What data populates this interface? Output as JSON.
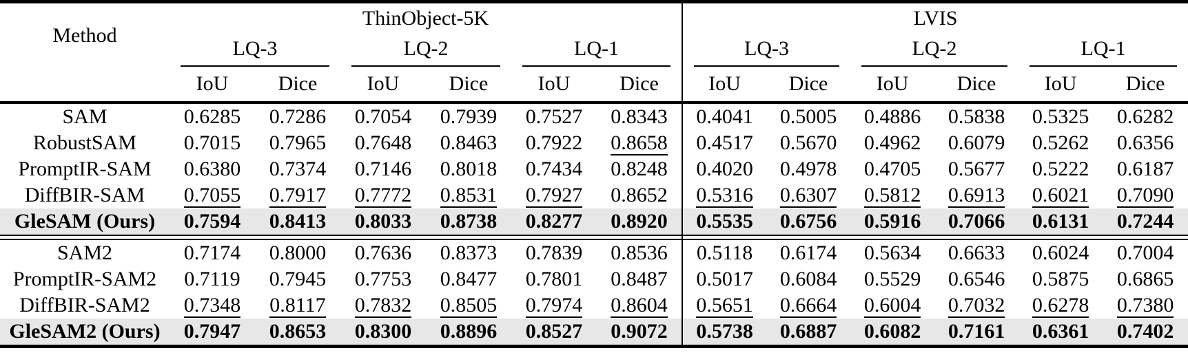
{
  "page": {
    "background_color": "#ffffff",
    "text_color": "#000000",
    "highlight_row_color": "#e7e7e7",
    "rule_color": "#000000"
  },
  "table": {
    "method_header": "Method",
    "groups": [
      {
        "label": "ThinObject-5K",
        "subgroups": [
          "LQ-3",
          "LQ-2",
          "LQ-1"
        ]
      },
      {
        "label": "LVIS",
        "subgroups": [
          "LQ-3",
          "LQ-2",
          "LQ-1"
        ]
      }
    ],
    "metric_headers": [
      "IoU",
      "Dice",
      "IoU",
      "Dice",
      "IoU",
      "Dice",
      "IoU",
      "Dice",
      "IoU",
      "Dice",
      "IoU",
      "Dice"
    ],
    "sections": [
      {
        "rows": [
          {
            "method": "SAM",
            "highlight": false,
            "underlined": [],
            "values": [
              "0.6285",
              "0.7286",
              "0.7054",
              "0.7939",
              "0.7527",
              "0.8343",
              "0.4041",
              "0.5005",
              "0.4886",
              "0.5838",
              "0.5325",
              "0.6282"
            ]
          },
          {
            "method": "RobustSAM",
            "highlight": false,
            "underlined": [
              5
            ],
            "values": [
              "0.7015",
              "0.7965",
              "0.7648",
              "0.8463",
              "0.7922",
              "0.8658",
              "0.4517",
              "0.5670",
              "0.4962",
              "0.6079",
              "0.5262",
              "0.6356"
            ]
          },
          {
            "method": "PromptIR-SAM",
            "highlight": false,
            "underlined": [],
            "values": [
              "0.6380",
              "0.7374",
              "0.7146",
              "0.8018",
              "0.7434",
              "0.8248",
              "0.4020",
              "0.4978",
              "0.4705",
              "0.5677",
              "0.5222",
              "0.6187"
            ]
          },
          {
            "method": "DiffBIR-SAM",
            "highlight": false,
            "underlined": [
              0,
              1,
              2,
              3,
              4,
              6,
              7,
              8,
              9,
              10,
              11
            ],
            "values": [
              "0.7055",
              "0.7917",
              "0.7772",
              "0.8531",
              "0.7927",
              "0.8652",
              "0.5316",
              "0.6307",
              "0.5812",
              "0.6913",
              "0.6021",
              "0.7090"
            ]
          },
          {
            "method": "GleSAM (Ours)",
            "highlight": true,
            "underlined": [],
            "values": [
              "0.7594",
              "0.8413",
              "0.8033",
              "0.8738",
              "0.8277",
              "0.8920",
              "0.5535",
              "0.6756",
              "0.5916",
              "0.7066",
              "0.6131",
              "0.7244"
            ]
          }
        ]
      },
      {
        "rows": [
          {
            "method": "SAM2",
            "highlight": false,
            "underlined": [],
            "values": [
              "0.7174",
              "0.8000",
              "0.7636",
              "0.8373",
              "0.7839",
              "0.8536",
              "0.5118",
              "0.6174",
              "0.5634",
              "0.6633",
              "0.6024",
              "0.7004"
            ]
          },
          {
            "method": "PromptIR-SAM2",
            "highlight": false,
            "underlined": [],
            "values": [
              "0.7119",
              "0.7945",
              "0.7753",
              "0.8477",
              "0.7801",
              "0.8487",
              "0.5017",
              "0.6084",
              "0.5529",
              "0.6546",
              "0.5875",
              "0.6865"
            ]
          },
          {
            "method": "DiffBIR-SAM2",
            "highlight": false,
            "underlined": [
              0,
              1,
              2,
              3,
              4,
              5,
              6,
              7,
              8,
              9,
              10,
              11
            ],
            "values": [
              "0.7348",
              "0.8117",
              "0.7832",
              "0.8505",
              "0.7974",
              "0.8604",
              "0.5651",
              "0.6664",
              "0.6004",
              "0.7032",
              "0.6278",
              "0.7380"
            ]
          },
          {
            "method": "GleSAM2 (Ours)",
            "highlight": true,
            "underlined": [],
            "values": [
              "0.7947",
              "0.8653",
              "0.8300",
              "0.8896",
              "0.8527",
              "0.9072",
              "0.5738",
              "0.6887",
              "0.6082",
              "0.7161",
              "0.6361",
              "0.7402"
            ]
          }
        ]
      }
    ]
  }
}
